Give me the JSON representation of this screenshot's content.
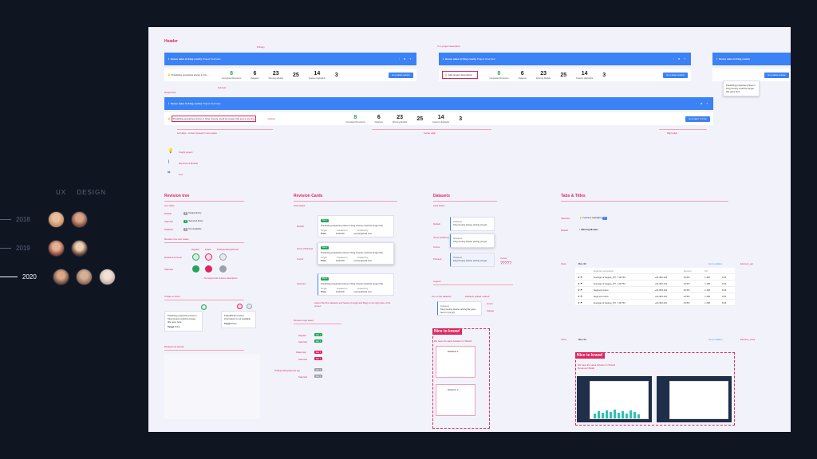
{
  "left": {
    "heading": [
      "UX",
      "DESIGN"
    ],
    "years": [
      {
        "label": "2018",
        "active": false,
        "avatar_colors": [
          "#c88a5c",
          "#7a4a3a"
        ]
      },
      {
        "label": "2019",
        "active": false,
        "avatar_colors": [
          "#b56a4e",
          "#d7a07a"
        ]
      },
      {
        "label": "2020",
        "active": true,
        "avatar_colors": [
          "#6a4b3a",
          "#8c6a55",
          "#e6d2c2"
        ]
      }
    ]
  },
  "canvas": {
    "header_title": "Header",
    "labels": {
      "primary": "Primary",
      "success": "Success",
      "responsive": "Responsive",
      "no_project_description": "If no project description",
      "add_project_desc": "Add project description",
      "header_side": "Header",
      "custom": "Custom",
      "left_align": "Left align - content spread if more space",
      "center_align": "Center align",
      "right_align": "Right align",
      "insight_project": "Insight project",
      "experiment_models": "Experiment Models",
      "icon": "Icon"
    },
    "bar": {
      "title": "House sales in King county",
      "dropdown": "Project Overview",
      "icons": "◔ ⚙ ?"
    },
    "row": {
      "desc_short": "Predicting properties prices in Kin...",
      "desc_long": "Predicting properties prices in King County could be longer title just a one line",
      "button": "Go to latest revision"
    },
    "stats": [
      {
        "value": "8",
        "label": "Completed Revisions",
        "green": true
      },
      {
        "value": "6",
        "label": "Datasets",
        "green": false
      },
      {
        "value": "23",
        "label": "Winning Models",
        "green": false
      },
      {
        "value": "25",
        "label": "Features",
        "green": false
      },
      {
        "value": "14",
        "label": "Feature Highlights",
        "green": false
      },
      {
        "value": "3",
        "label": "",
        "green": false
      }
    ],
    "tooltip": "Predicting properties prices in King County could be longer title goes here",
    "sections": {
      "revision_tree": "Revision tree",
      "revision_cards": "Revision Cards",
      "datasets": "Datasets",
      "tabs_titles": "Tabs & Titles"
    },
    "tree": {
      "icon_state": "Icon State",
      "default": "Default",
      "selected": "Selected",
      "disabled": "Disabled",
      "pill_default": "Default Entry",
      "pill_selected": "Selected Entry",
      "pill_disabled": "Not Available",
      "revision_new": "Revision tree icon states",
      "regular": "Regular",
      "failed": "Failed",
      "pending": "Draft/pending/aborted",
      "default_and_hover": "Default and hover",
      "tooltip_on_hover": "Tooltip on hover",
      "background_sample": "Background sample",
      "tooltip_card": "Predicting properties prices in King County could be longer title goes here",
      "target": "Target",
      "target_val": "Price",
      "failed_note": "Failed/Draft revision information is not available",
      "no_target": "No target and revision description"
    },
    "cards": {
      "card_states": "Card states",
      "default": "Default",
      "hover": "Hover (Shadow)",
      "selected": "Selected",
      "cursor": "Cursor",
      "title": "Predicting properties prices in King County could be longer title",
      "cols": [
        "Target",
        "Created on",
        "Created by"
      ],
      "vals": [
        "Price",
        "11/23/19",
        "person@mail.com"
      ],
      "action": "Action filter the datasets and feature (Insight and Bug) on the right side of the screen",
      "tags": "Revision tags states",
      "regular": "Regular",
      "selected_lbl": "Selected",
      "failed": "Failed tag",
      "pending": "Draft/pending/aborted tag",
      "rev_pill": "Rev 1"
    },
    "datasets": {
      "card_states": "Card states",
      "default": "Default",
      "hover": "Hover (shadow)",
      "pressed": "Pressed",
      "legend": "Legend",
      "ds_title": "King County House pricing (cs.gz)",
      "label": "Datasets",
      "long_name": "King County House pricing file goes here in (cs.gz)",
      "cursor": "Cursor",
      "qmark": "?????",
      "icons_note": "Icon of the datasets",
      "upload": "Datasets upload method",
      "server": "server",
      "upload_lbl": "Upload",
      "nice": "Nice to know!",
      "nice_sub": "We have the same behavior in Wizard",
      "count": "Datasets 4"
    },
    "tabs": {
      "selected": "Selected",
      "default": "Default",
      "feature_highlights": "Features Highlights",
      "winning_models": "Winning Models",
      "open": "Open",
      "close": "Close",
      "rev_open": "Rev. 02",
      "rev_close": "Rev. 03",
      "go_btn": "Go to revision",
      "element_open": "Element_opt",
      "element_close": "Element_close",
      "headers": [
        "Features expression",
        "Support",
        "Lift"
      ],
      "rows": [
        {
          "name": "Average of degree_PX < 46.753",
          "val": "+23.403.101",
          "s": "23.5%",
          "l": "1.436",
          "x": "0.34"
        },
        {
          "name": "Average of degree_PX < 46.753",
          "val": "+23.403.101",
          "s": "23.5%",
          "l": "1.436",
          "x": "0.34"
        },
        {
          "name": "Segment name",
          "val": "+23.403.101",
          "s": "23.5%",
          "l": "1.436",
          "x": "0.34"
        },
        {
          "name": "Segment name",
          "val": "+23.403.101",
          "s": "23.5%",
          "l": "1.436",
          "x": "0.34"
        },
        {
          "name": "Average of degree_PX < 46.753",
          "val": "+23.403.101",
          "s": "23.5%",
          "l": "1.436",
          "x": "0.34"
        }
      ],
      "nice": "Nice to know!",
      "nice_sub": "We have the same behavior in Wizard Developer (Beta)"
    }
  }
}
